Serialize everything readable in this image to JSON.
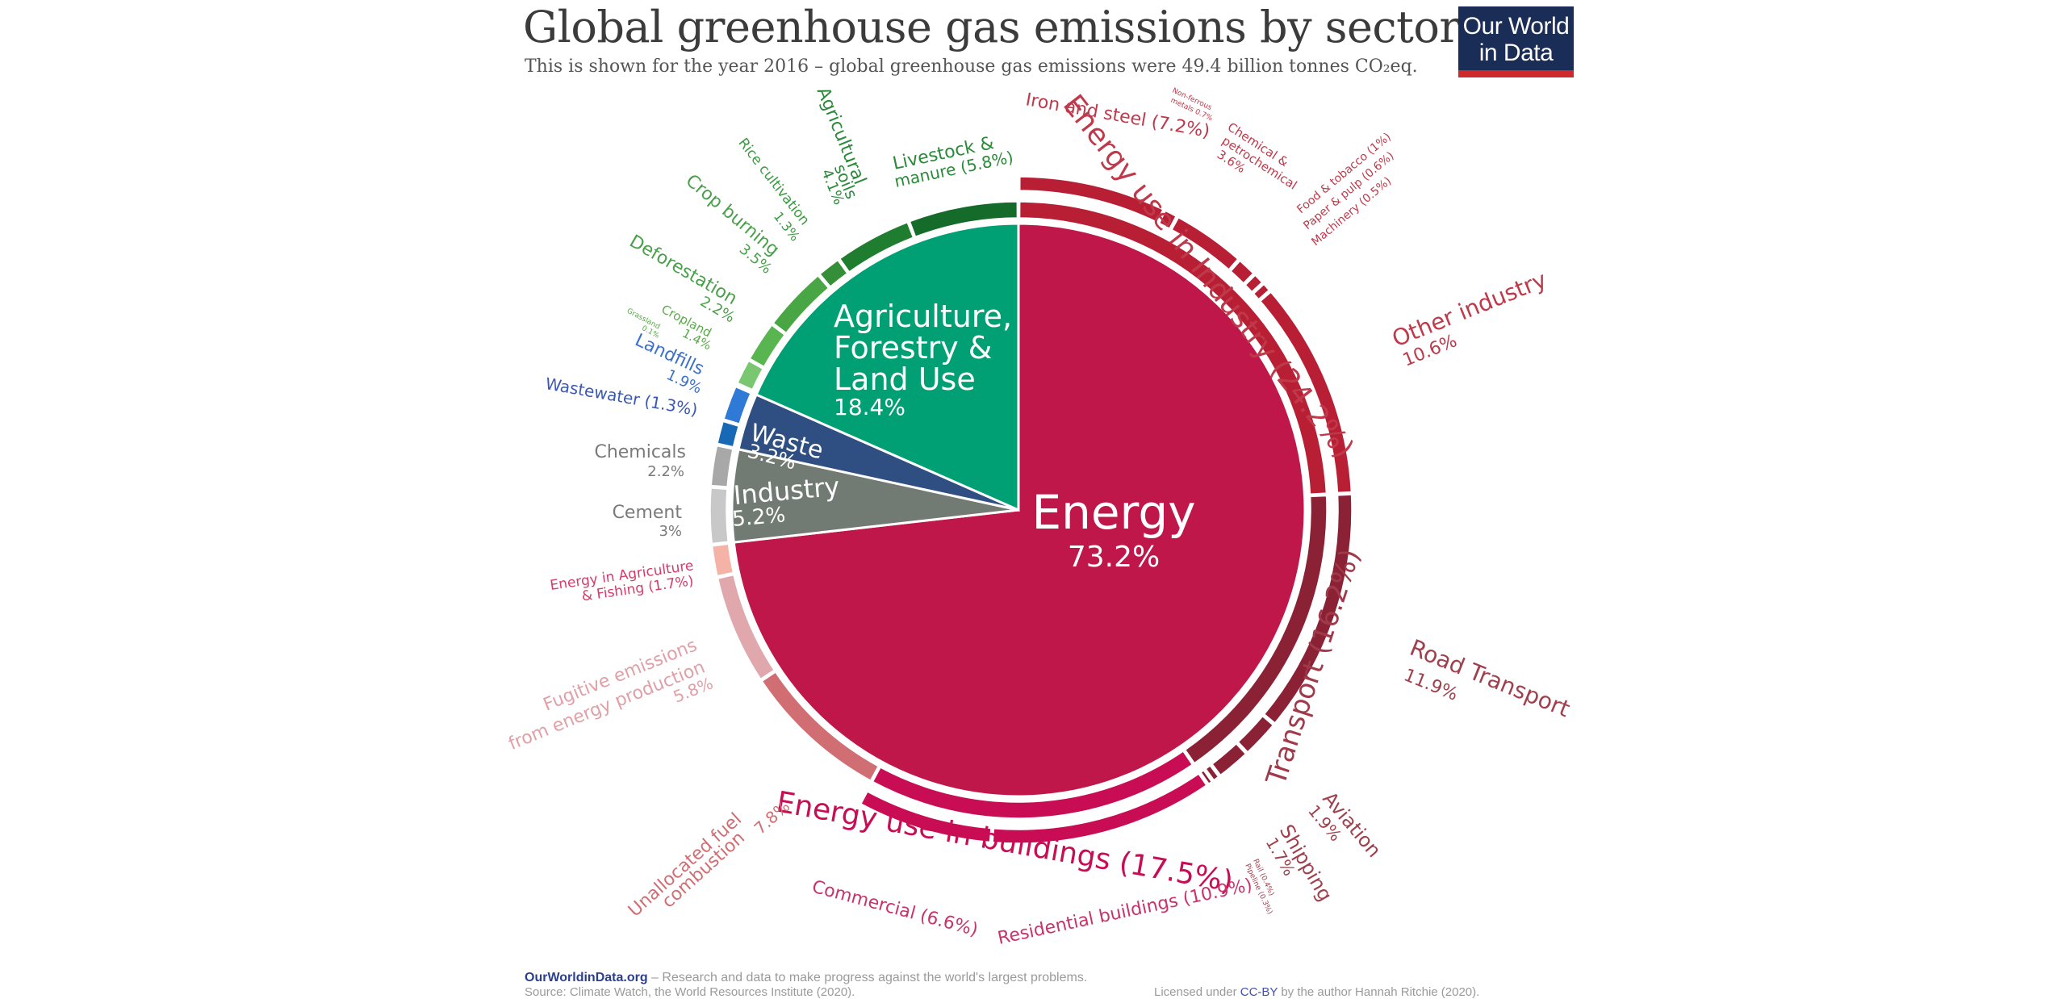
{
  "header": {
    "title": "Global greenhouse gas emissions by sector",
    "subtitle": "This is shown for the year 2016 – global greenhouse gas emissions were 49.4 billion tonnes CO₂eq.",
    "logo_line1": "Our World",
    "logo_line2": "in Data"
  },
  "footer": {
    "site": "OurWorldinData.org",
    "tagline": " – Research and data to make progress against the world's largest problems.",
    "source": "Source: Climate Watch, the World Resources Institute (2020).",
    "license_prefix": "Licensed under ",
    "license_link": "CC-BY",
    "license_suffix": " by the author Hannah Ritchie  (2020)."
  },
  "chart_data": {
    "type": "pie",
    "title": "Global greenhouse gas emissions by sector",
    "unit": "%",
    "inner": [
      {
        "label": "Energy",
        "value": 73.2,
        "color": "#c0174a"
      },
      {
        "label": "Industry",
        "value": 5.2,
        "color": "#727b73"
      },
      {
        "label": "Waste",
        "value": 3.2,
        "color": "#2f4f82"
      },
      {
        "label": "Agriculture, Forestry & Land Use",
        "value": 18.4,
        "color": "#00a074"
      }
    ],
    "middle": [
      {
        "label": "Energy use in Industry",
        "value": 24.2,
        "color": "#b81e34"
      },
      {
        "label": "Transport",
        "value": 16.2,
        "color": "#8b2135"
      },
      {
        "label": "Energy use in buildings",
        "value": 17.5,
        "color": "#c80d55"
      },
      {
        "label": "Unallocated fuel combustion",
        "value": 7.8,
        "color": "#d06e74"
      },
      {
        "label": "Fugitive emissions from energy production",
        "value": 5.8,
        "color": "#e0a7ac"
      },
      {
        "label": "Energy in Agriculture & Fishing",
        "value": 1.7,
        "color": "#f5b3a8"
      },
      {
        "label": "Cement",
        "value": 3.0,
        "color": "#c8c8c8"
      },
      {
        "label": "Chemicals",
        "value": 2.2,
        "color": "#a8a8a8"
      },
      {
        "label": "Wastewater",
        "value": 1.3,
        "color": "#1769b6"
      },
      {
        "label": "Landfills",
        "value": 1.9,
        "color": "#2e7ad6"
      },
      {
        "label": "Grassland",
        "value": 0.1,
        "color": "#86d27e"
      },
      {
        "label": "Cropland",
        "value": 1.4,
        "color": "#79c771"
      },
      {
        "label": "Deforestation",
        "value": 2.2,
        "color": "#58b54f"
      },
      {
        "label": "Crop burning",
        "value": 3.5,
        "color": "#48a644"
      },
      {
        "label": "Rice cultivation",
        "value": 1.3,
        "color": "#358f38"
      },
      {
        "label": "Agricultural soils",
        "value": 4.1,
        "color": "#1f7d2f"
      },
      {
        "label": "Livestock & manure",
        "value": 5.8,
        "color": "#146b2a"
      }
    ],
    "outer": [
      {
        "label": "Iron and steel",
        "value": 7.2,
        "color": "#b81e34"
      },
      {
        "label": "Non-ferrous metals",
        "value": 0.7,
        "color": "#b81e34"
      },
      {
        "label": "Chemical & petrochemical",
        "value": 3.6,
        "color": "#b81e34"
      },
      {
        "label": "Food & tobacco",
        "value": 1.0,
        "color": "#b81e34"
      },
      {
        "label": "Paper & pulp",
        "value": 0.6,
        "color": "#b81e34"
      },
      {
        "label": "Machinery",
        "value": 0.5,
        "color": "#b81e34"
      },
      {
        "label": "Other industry",
        "value": 10.6,
        "color": "#b81e34"
      },
      {
        "label": "Road Transport",
        "value": 11.9,
        "color": "#8b2135"
      },
      {
        "label": "Aviation",
        "value": 1.9,
        "color": "#8b2135"
      },
      {
        "label": "Shipping",
        "value": 1.7,
        "color": "#8b2135"
      },
      {
        "label": "Rail",
        "value": 0.4,
        "color": "#8b2135"
      },
      {
        "label": "Pipeline",
        "value": 0.3,
        "color": "#8b2135"
      },
      {
        "label": "Residential buildings",
        "value": 10.9,
        "color": "#c80d55"
      },
      {
        "label": "Commercial",
        "value": 6.6,
        "color": "#c80d55"
      }
    ],
    "text_labels": [
      {
        "id": "inner-energy-name",
        "text": "Energy",
        "color": "#ffffff"
      },
      {
        "id": "inner-energy-value",
        "text": "73.2%",
        "color": "#ffffff"
      },
      {
        "id": "inner-afolu-1",
        "text": "Agriculture,",
        "color": "#ffffff"
      },
      {
        "id": "inner-afolu-2",
        "text": "Forestry &",
        "color": "#ffffff"
      },
      {
        "id": "inner-afolu-3",
        "text": "Land Use",
        "color": "#ffffff"
      },
      {
        "id": "inner-afolu-value",
        "text": "18.4%",
        "color": "#ffffff"
      },
      {
        "id": "inner-waste-name",
        "text": "Waste",
        "color": "#ffffff"
      },
      {
        "id": "inner-waste-value",
        "text": "3.2%",
        "color": "#ffffff"
      },
      {
        "id": "inner-industry-name",
        "text": "Industry",
        "color": "#ffffff"
      },
      {
        "id": "inner-industry-value",
        "text": "5.2%",
        "color": "#ffffff"
      },
      {
        "id": "label-energy-industry",
        "text": "Energy use in Industry (24.2%)",
        "color": "#c0394a"
      },
      {
        "id": "label-transport",
        "text": "Transport (16.2%)",
        "color": "#a03a4a"
      },
      {
        "id": "label-buildings",
        "text": "Energy use in buildings (17.5%)",
        "color": "#c80d55"
      },
      {
        "id": "label-iron",
        "text": "Iron and steel (7.2%)",
        "color": "#c0394a"
      },
      {
        "id": "label-nonferrous-1",
        "text": "Non-ferrous",
        "color": "#c0394a"
      },
      {
        "id": "label-nonferrous-2",
        "text": "metals 0.7%",
        "color": "#c0394a"
      },
      {
        "id": "label-chem-1",
        "text": "Chemical &",
        "color": "#c0394a"
      },
      {
        "id": "label-chem-2",
        "text": "petrochemical",
        "color": "#c0394a"
      },
      {
        "id": "label-chem-3",
        "text": "3.6%",
        "color": "#c0394a"
      },
      {
        "id": "label-food",
        "text": "Food & tobacco (1%)",
        "color": "#c0394a"
      },
      {
        "id": "label-paper",
        "text": "Paper & pulp (0.6%)",
        "color": "#c0394a"
      },
      {
        "id": "label-machinery",
        "text": "Machinery (0.5%)",
        "color": "#c0394a"
      },
      {
        "id": "label-other-industry",
        "text": "Other industry",
        "color": "#c0394a"
      },
      {
        "id": "label-other-industry-value",
        "text": "10.6%",
        "color": "#c0394a"
      },
      {
        "id": "label-road",
        "text": "Road Transport",
        "color": "#a0404d"
      },
      {
        "id": "label-road-value",
        "text": "11.9%",
        "color": "#a0404d"
      },
      {
        "id": "label-aviation",
        "text": "Aviation",
        "color": "#a0404d"
      },
      {
        "id": "label-aviation-value",
        "text": "1.9%",
        "color": "#a0404d"
      },
      {
        "id": "label-shipping",
        "text": "Shipping",
        "color": "#a0404d"
      },
      {
        "id": "label-shipping-value",
        "text": "1.7%",
        "color": "#a0404d"
      },
      {
        "id": "label-rail",
        "text": "Rail (0.4%)",
        "color": "#a0404d"
      },
      {
        "id": "label-pipeline",
        "text": "Pipeline (0.3%)",
        "color": "#a0404d"
      },
      {
        "id": "label-residential",
        "text": "Residential buildings (10.9%)",
        "color": "#c8346a"
      },
      {
        "id": "label-commercial",
        "text": "Commercial (6.6%)",
        "color": "#c8346a"
      },
      {
        "id": "label-unallocated-1",
        "text": "Unallocated fuel",
        "color": "#d06e74"
      },
      {
        "id": "label-unallocated-2",
        "text": "combustion",
        "color": "#d06e74"
      },
      {
        "id": "label-unallocated-3",
        "text": "7.8%",
        "color": "#d06e74"
      },
      {
        "id": "label-fugitive-1",
        "text": "Fugitive emissions",
        "color": "#e0a0a8"
      },
      {
        "id": "label-fugitive-2",
        "text": "from energy production",
        "color": "#e0a0a8"
      },
      {
        "id": "label-fugitive-3",
        "text": "5.8%",
        "color": "#e0a0a8"
      },
      {
        "id": "label-energy-agri-1",
        "text": "Energy in Agriculture",
        "color": "#d63a6a"
      },
      {
        "id": "label-energy-agri-2",
        "text": "& Fishing (1.7%)",
        "color": "#d63a6a"
      },
      {
        "id": "label-cement",
        "text": "Cement",
        "color": "#7a7a7a"
      },
      {
        "id": "label-cement-value",
        "text": "3%",
        "color": "#7a7a7a"
      },
      {
        "id": "label-chemicals",
        "text": "Chemicals",
        "color": "#7a7a7a"
      },
      {
        "id": "label-chemicals-value",
        "text": "2.2%",
        "color": "#7a7a7a"
      },
      {
        "id": "label-wastewater",
        "text": "Wastewater (1.3%)",
        "color": "#3a58b8"
      },
      {
        "id": "label-landfills",
        "text": "Landfills",
        "color": "#3a70d0"
      },
      {
        "id": "label-landfills-value",
        "text": "1.9%",
        "color": "#3a70d0"
      },
      {
        "id": "label-grassland-1",
        "text": "Grassland",
        "color": "#5aaa4a"
      },
      {
        "id": "label-grassland-2",
        "text": "0.1%",
        "color": "#5aaa4a"
      },
      {
        "id": "label-cropland-1",
        "text": "Cropland",
        "color": "#5aaa4a"
      },
      {
        "id": "label-cropland-2",
        "text": "1.4%",
        "color": "#5aaa4a"
      },
      {
        "id": "label-deforestation",
        "text": "Deforestation",
        "color": "#4aa04a"
      },
      {
        "id": "label-deforestation-value",
        "text": "2.2%",
        "color": "#4aa04a"
      },
      {
        "id": "label-crop-burning",
        "text": "Crop burning",
        "color": "#4aa04a"
      },
      {
        "id": "label-crop-burning-value",
        "text": "3.5%",
        "color": "#4aa04a"
      },
      {
        "id": "label-rice",
        "text": "Rice cultivation",
        "color": "#3a9a40"
      },
      {
        "id": "label-rice-value",
        "text": "1.3%",
        "color": "#3a9a40"
      },
      {
        "id": "label-agsoils-1",
        "text": "Agricultural",
        "color": "#2a8a3a"
      },
      {
        "id": "label-agsoils-2",
        "text": "soils",
        "color": "#2a8a3a"
      },
      {
        "id": "label-agsoils-3",
        "text": "4.1%",
        "color": "#2a8a3a"
      },
      {
        "id": "label-livestock-1",
        "text": "Livestock &",
        "color": "#2a8a3a"
      },
      {
        "id": "label-livestock-2",
        "text": "manure (5.8%)",
        "color": "#2a8a3a"
      }
    ]
  }
}
